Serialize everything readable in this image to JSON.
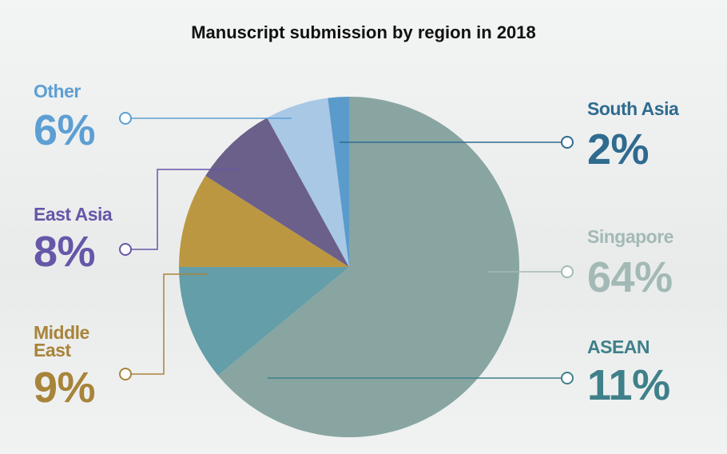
{
  "chart_data": {
    "type": "pie",
    "title": "Manuscript submission by region in 2018",
    "categories": [
      "Singapore",
      "ASEAN",
      "Middle East",
      "East Asia",
      "Other",
      "South Asia"
    ],
    "values": [
      64,
      11,
      9,
      8,
      6,
      2
    ],
    "value_labels": [
      "64%",
      "11%",
      "9%",
      "8%",
      "6%",
      "2%"
    ],
    "colors": [
      "#88a5a2",
      "#649ea8",
      "#bc9742",
      "#6b6089",
      "#a9c8e6",
      "#5b9bcb"
    ],
    "label_colors": [
      "#a3b9b5",
      "#3f8089",
      "#a8843a",
      "#6657a8",
      "#5d9fd3",
      "#2f6b8f"
    ]
  }
}
